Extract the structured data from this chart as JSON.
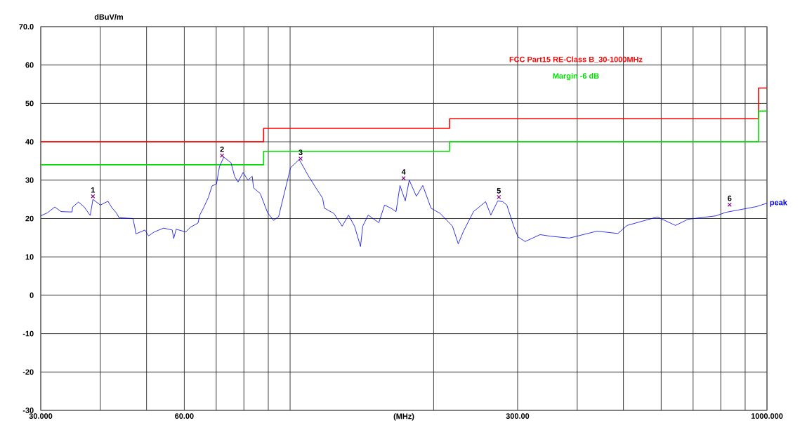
{
  "chart_data": {
    "type": "line",
    "xlabel": "(MHz)",
    "ylabel": "dBuV/m",
    "log": "x",
    "xlim": [
      30,
      1000
    ],
    "ylim": [
      -30,
      70
    ],
    "xticks": [
      {
        "value": 30,
        "label": "30.000"
      },
      {
        "value": 40,
        "label": null
      },
      {
        "value": 50,
        "label": null
      },
      {
        "value": 60,
        "label": "60.00"
      },
      {
        "value": 70,
        "label": null
      },
      {
        "value": 80,
        "label": null
      },
      {
        "value": 90,
        "label": null
      },
      {
        "value": 100,
        "label": null
      },
      {
        "value": 200,
        "label": null
      },
      {
        "value": 300,
        "label": "300.00"
      },
      {
        "value": 400,
        "label": null
      },
      {
        "value": 500,
        "label": null
      },
      {
        "value": 600,
        "label": null
      },
      {
        "value": 700,
        "label": null
      },
      {
        "value": 800,
        "label": null
      },
      {
        "value": 900,
        "label": null
      },
      {
        "value": 1000,
        "label": "1000.000"
      }
    ],
    "yticks": [
      -30,
      -20,
      -10,
      0,
      10,
      20,
      30,
      40,
      50,
      60,
      {
        "value": 70,
        "label": "70.0"
      }
    ],
    "grid": true,
    "legend": "top right",
    "series": [
      {
        "name": "FCC Part15 RE-Class B_30-1000MHz",
        "type": "step",
        "color": "#ff0000",
        "x": [
          30,
          88,
          216,
          960,
          1000
        ],
        "values": [
          40,
          43.5,
          46,
          54,
          54
        ]
      },
      {
        "name": "Margin -6 dB",
        "type": "step",
        "color": "#00e000",
        "x": [
          30,
          88,
          216,
          960,
          1000
        ],
        "values": [
          34,
          37.5,
          40,
          48,
          48
        ]
      },
      {
        "name": "peak",
        "type": "line",
        "color": "#0000ee",
        "x": [
          30,
          31.0,
          32.1,
          33.1,
          34.9,
          35.0,
          36.0,
          37.0,
          38.1,
          38.6,
          40.0,
          41.5,
          42.3,
          43.2,
          43.8,
          46.8,
          47.2,
          47.5,
          49.6,
          50.5,
          51.9,
          54.3,
          56.6,
          57.0,
          57.7,
          60.4,
          61.9,
          64.1,
          64.7,
          65.8,
          67.4,
          68.6,
          70.1,
          71.1,
          72.6,
          75.2,
          76.5,
          77.8,
          79.7,
          81.6,
          83.3,
          83.8,
          86.6,
          89.7,
          92.3,
          94.6,
          100.2,
          104.5,
          109.0,
          113,
          117,
          118,
          123.6,
          128.6,
          132.6,
          136.5,
          140.5,
          142,
          145.8,
          153.5,
          157.8,
          162.7,
          166.8,
          170,
          174.4,
          177.8,
          184,
          189.8,
          197.5,
          206.5,
          219,
          225.2,
          231,
          242.5,
          257,
          263.6,
          272.6,
          279,
          284.8,
          294,
          300.6,
          311,
          334.5,
          351,
          385,
          440,
          487,
          509,
          589,
          643,
          683,
          782,
          819,
          869,
          950,
          1000
        ],
        "values": [
          20.7,
          21.5,
          23,
          21.8,
          21.7,
          23,
          24.3,
          23,
          20.8,
          25,
          23.5,
          24.5,
          22.8,
          21.5,
          20.2,
          20,
          18,
          16,
          17,
          15.5,
          16.5,
          17.5,
          17,
          14.8,
          17.2,
          16.5,
          17.8,
          18.8,
          21,
          22.7,
          25.5,
          28.5,
          29,
          33.5,
          36,
          34.5,
          31,
          29.5,
          32,
          30,
          31,
          28,
          26.5,
          21.5,
          19.5,
          20.5,
          33.2,
          35.4,
          31.3,
          28.2,
          25.3,
          22.7,
          21.3,
          18,
          20.9,
          18,
          12.7,
          18,
          20.9,
          18.9,
          23.5,
          22.7,
          21.8,
          28.6,
          24.6,
          30,
          25.8,
          28.6,
          22.7,
          21.3,
          18,
          13.4,
          16.7,
          21.8,
          24.4,
          20.9,
          24.6,
          24.4,
          23.5,
          18.2,
          15.2,
          14,
          15.8,
          15.4,
          14.9,
          16.7,
          16.1,
          18.2,
          20.4,
          18.2,
          19.8,
          20.7,
          21.6,
          22.2,
          23.1,
          24
        ]
      },
      {
        "type": "scatter",
        "marker": "cross",
        "color": "#880088",
        "x": [
          38.6,
          72.0,
          105.2,
          173,
          274,
          835
        ],
        "values": [
          25.8,
          36.4,
          35.6,
          30.5,
          25.6,
          23.6
        ]
      }
    ],
    "annotations": [
      {
        "text": "1",
        "x": 38.6,
        "y": 25.8
      },
      {
        "text": "2",
        "x": 72.0,
        "y": 36.4
      },
      {
        "text": "3",
        "x": 105.2,
        "y": 35.6
      },
      {
        "text": "4",
        "x": 173,
        "y": 30.5
      },
      {
        "text": "5",
        "x": 274,
        "y": 25.6
      },
      {
        "text": "6",
        "x": 835,
        "y": 23.6
      }
    ]
  }
}
